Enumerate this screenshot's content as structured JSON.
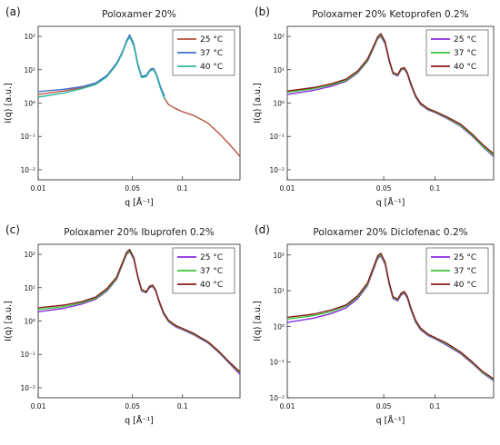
{
  "colors": {
    "25C_a": "#b5533c",
    "37C_a": "#3f6fd1",
    "40C_a": "#2fb5a0",
    "25C": "#8a2be2",
    "37C": "#3cc63c",
    "40C": "#8b1a1a"
  },
  "chart_data": [
    {
      "type": "line",
      "panel_label": "(a)",
      "title": "Poloxamer 20%",
      "xlabel": "q [Å⁻¹]",
      "ylabel": "I(q) [a.u.]",
      "xscale": "log",
      "yscale": "log",
      "xlim": [
        0.01,
        0.25
      ],
      "ylim": [
        0.005,
        200
      ],
      "xticks": [
        {
          "value": 0.01,
          "label": "0.01"
        },
        {
          "value": 0.045,
          "label": "0.05"
        },
        {
          "value": 0.1,
          "label": "0.1"
        }
      ],
      "yticks": [
        {
          "value": 0.01,
          "label": "10⁻²"
        },
        {
          "value": 0.1,
          "label": "10⁻¹"
        },
        {
          "value": 1,
          "label": "10⁰"
        },
        {
          "value": 10,
          "label": "10¹"
        },
        {
          "value": 100,
          "label": "10²"
        }
      ],
      "legend_position": "top-right",
      "series": [
        {
          "name": "25 °C",
          "color_key": "25C_a",
          "x": [
            0.01,
            0.015,
            0.02,
            0.025,
            0.03,
            0.035,
            0.038,
            0.041,
            0.043,
            0.046,
            0.049,
            0.052,
            0.056,
            0.06,
            0.063,
            0.066,
            0.07,
            0.075,
            0.08,
            0.09,
            0.1,
            0.12,
            0.15,
            0.18,
            0.21,
            0.25
          ],
          "y": [
            1.8,
            2.3,
            2.9,
            3.8,
            6.5,
            15,
            30,
            70,
            100,
            55,
            14,
            6,
            6.5,
            10,
            10.5,
            7,
            3,
            1.4,
            0.9,
            0.68,
            0.55,
            0.42,
            0.25,
            0.12,
            0.06,
            0.025
          ]
        },
        {
          "name": "37 °C",
          "color_key": "37C_a",
          "x": [
            0.01,
            0.015,
            0.02,
            0.025,
            0.03,
            0.035,
            0.038,
            0.041,
            0.043,
            0.046,
            0.049,
            0.052,
            0.056,
            0.06,
            0.063,
            0.066,
            0.07,
            0.075
          ],
          "y": [
            2.2,
            2.6,
            3.1,
            4.0,
            6.8,
            16,
            32,
            75,
            110,
            60,
            15,
            6.3,
            6.8,
            10.5,
            11,
            7.5,
            3.3,
            1.6
          ]
        },
        {
          "name": "40 °C",
          "color_key": "40C_a",
          "x": [
            0.01,
            0.015,
            0.02,
            0.025,
            0.03,
            0.035,
            0.038,
            0.041,
            0.043,
            0.046,
            0.049,
            0.052,
            0.056,
            0.06,
            0.063,
            0.066,
            0.07,
            0.075
          ],
          "y": [
            1.5,
            2.0,
            2.7,
            3.6,
            6.2,
            14.5,
            29,
            68,
            95,
            52,
            13.5,
            5.8,
            6.2,
            9.7,
            10,
            6.8,
            2.9,
            1.35
          ]
        }
      ]
    },
    {
      "type": "line",
      "panel_label": "(b)",
      "title": "Poloxamer 20% Ketoprofen 0.2%",
      "xlabel": "q [Å⁻¹]",
      "ylabel": "I(q) [a.u.]",
      "xscale": "log",
      "yscale": "log",
      "xlim": [
        0.01,
        0.25
      ],
      "ylim": [
        0.005,
        200
      ],
      "xticks": [
        {
          "value": 0.01,
          "label": "0.01"
        },
        {
          "value": 0.045,
          "label": "0.05"
        },
        {
          "value": 0.1,
          "label": "0.1"
        }
      ],
      "yticks": [
        {
          "value": 0.01,
          "label": "10⁻²"
        },
        {
          "value": 0.1,
          "label": "10⁻¹"
        },
        {
          "value": 1,
          "label": "10⁰"
        },
        {
          "value": 10,
          "label": "10¹"
        },
        {
          "value": 100,
          "label": "10²"
        }
      ],
      "legend_position": "top-right",
      "series": [
        {
          "name": "25 °C",
          "color_key": "25C",
          "x": [
            0.01,
            0.015,
            0.02,
            0.025,
            0.03,
            0.035,
            0.038,
            0.041,
            0.043,
            0.046,
            0.049,
            0.052,
            0.056,
            0.059,
            0.062,
            0.065,
            0.069,
            0.074,
            0.08,
            0.09,
            0.1,
            0.12,
            0.15,
            0.18,
            0.21,
            0.25
          ],
          "y": [
            1.8,
            2.4,
            3.2,
            4.5,
            8,
            18,
            40,
            85,
            100,
            60,
            18,
            7.5,
            6.5,
            9.8,
            10.5,
            7.5,
            3.3,
            1.5,
            0.9,
            0.62,
            0.52,
            0.35,
            0.2,
            0.1,
            0.05,
            0.025
          ]
        },
        {
          "name": "37 °C",
          "color_key": "37C",
          "x": [
            0.01,
            0.015,
            0.02,
            0.025,
            0.03,
            0.035,
            0.038,
            0.041,
            0.043,
            0.046,
            0.049,
            0.052,
            0.056,
            0.059,
            0.062,
            0.065,
            0.069,
            0.074,
            0.08,
            0.09,
            0.1,
            0.12,
            0.15,
            0.18,
            0.21,
            0.25
          ],
          "y": [
            2.1,
            2.7,
            3.5,
            4.8,
            8.5,
            19,
            42,
            90,
            108,
            65,
            19,
            7.8,
            6.8,
            10.2,
            11,
            7.8,
            3.5,
            1.6,
            0.95,
            0.65,
            0.54,
            0.37,
            0.21,
            0.105,
            0.052,
            0.027
          ]
        },
        {
          "name": "40 °C",
          "color_key": "40C",
          "x": [
            0.01,
            0.015,
            0.02,
            0.025,
            0.03,
            0.035,
            0.038,
            0.041,
            0.043,
            0.046,
            0.049,
            0.052,
            0.056,
            0.059,
            0.062,
            0.065,
            0.069,
            0.074,
            0.08,
            0.09,
            0.1,
            0.12,
            0.15,
            0.18,
            0.21,
            0.25
          ],
          "y": [
            2.3,
            2.9,
            3.8,
            5.2,
            9.2,
            21,
            46,
            98,
            120,
            70,
            20,
            8.2,
            7.1,
            10.8,
            11.6,
            8.2,
            3.7,
            1.7,
            1.0,
            0.68,
            0.56,
            0.39,
            0.23,
            0.115,
            0.058,
            0.03
          ]
        }
      ]
    },
    {
      "type": "line",
      "panel_label": "(c)",
      "title": "Poloxamer 20% Ibuprofen 0.2%",
      "xlabel": "q [Å⁻¹]",
      "ylabel": "I(q) [a.u.]",
      "xscale": "log",
      "yscale": "log",
      "xlim": [
        0.01,
        0.25
      ],
      "ylim": [
        0.005,
        200
      ],
      "xticks": [
        {
          "value": 0.01,
          "label": "0.01"
        },
        {
          "value": 0.045,
          "label": "0.05"
        },
        {
          "value": 0.1,
          "label": "0.1"
        }
      ],
      "yticks": [
        {
          "value": 0.01,
          "label": "10⁻²"
        },
        {
          "value": 0.1,
          "label": "10⁻¹"
        },
        {
          "value": 1,
          "label": "10⁰"
        },
        {
          "value": 10,
          "label": "10¹"
        },
        {
          "value": 100,
          "label": "10²"
        }
      ],
      "legend_position": "top-right",
      "series": [
        {
          "name": "25 °C",
          "color_key": "25C",
          "x": [
            0.01,
            0.015,
            0.02,
            0.025,
            0.03,
            0.035,
            0.038,
            0.041,
            0.043,
            0.046,
            0.049,
            0.052,
            0.056,
            0.059,
            0.062,
            0.065,
            0.069,
            0.074,
            0.08,
            0.09,
            0.1,
            0.12,
            0.15,
            0.18,
            0.21,
            0.25
          ],
          "y": [
            1.9,
            2.4,
            3.2,
            4.5,
            8,
            18,
            45,
            100,
            120,
            70,
            20,
            8,
            7,
            10,
            11,
            8,
            3.5,
            1.6,
            0.95,
            0.66,
            0.55,
            0.38,
            0.22,
            0.11,
            0.055,
            0.025
          ]
        },
        {
          "name": "37 °C",
          "color_key": "37C",
          "x": [
            0.01,
            0.015,
            0.02,
            0.025,
            0.03,
            0.035,
            0.038,
            0.041,
            0.043,
            0.046,
            0.049,
            0.052,
            0.056,
            0.059,
            0.062,
            0.065,
            0.069,
            0.074,
            0.08,
            0.09,
            0.1,
            0.12,
            0.15,
            0.18,
            0.21,
            0.25
          ],
          "y": [
            2.2,
            2.7,
            3.5,
            4.8,
            8.6,
            19,
            48,
            105,
            128,
            74,
            21,
            8.4,
            7.3,
            10.5,
            11.5,
            8.4,
            3.7,
            1.7,
            1.0,
            0.7,
            0.58,
            0.4,
            0.23,
            0.115,
            0.058,
            0.028
          ]
        },
        {
          "name": "40 °C",
          "color_key": "40C",
          "x": [
            0.01,
            0.015,
            0.02,
            0.025,
            0.03,
            0.035,
            0.038,
            0.041,
            0.043,
            0.046,
            0.049,
            0.052,
            0.056,
            0.059,
            0.062,
            0.065,
            0.069,
            0.074,
            0.08,
            0.09,
            0.1,
            0.12,
            0.15,
            0.18,
            0.21,
            0.25
          ],
          "y": [
            2.5,
            3.0,
            3.8,
            5.2,
            9.5,
            21,
            52,
            115,
            140,
            80,
            22,
            8.8,
            7.6,
            11,
            12,
            8.8,
            3.9,
            1.8,
            1.05,
            0.73,
            0.6,
            0.42,
            0.24,
            0.12,
            0.06,
            0.03
          ]
        }
      ]
    },
    {
      "type": "line",
      "panel_label": "(d)",
      "title": "Poloxamer 20% Diclofenac 0.2%",
      "xlabel": "q [Å⁻¹]",
      "ylabel": "I(q) [a.u.]",
      "xscale": "log",
      "yscale": "log",
      "xlim": [
        0.01,
        0.25
      ],
      "ylim": [
        0.01,
        200
      ],
      "xticks": [
        {
          "value": 0.01,
          "label": "0.01"
        },
        {
          "value": 0.045,
          "label": "0.05"
        },
        {
          "value": 0.1,
          "label": "0.1"
        }
      ],
      "yticks": [
        {
          "value": 0.01,
          "label": "10⁻²"
        },
        {
          "value": 0.1,
          "label": "10⁻¹"
        },
        {
          "value": 1,
          "label": "10⁰"
        },
        {
          "value": 10,
          "label": "10¹"
        },
        {
          "value": 100,
          "label": "10²"
        }
      ],
      "legend_position": "top-right",
      "series": [
        {
          "name": "25 °C",
          "color_key": "25C",
          "x": [
            0.01,
            0.015,
            0.02,
            0.025,
            0.03,
            0.035,
            0.038,
            0.041,
            0.043,
            0.046,
            0.049,
            0.052,
            0.056,
            0.059,
            0.062,
            0.065,
            0.069,
            0.074,
            0.08,
            0.09,
            0.1,
            0.12,
            0.15,
            0.18,
            0.21,
            0.25
          ],
          "y": [
            1.3,
            1.7,
            2.3,
            3.3,
            6,
            14,
            35,
            80,
            95,
            55,
            15,
            6,
            5.2,
            7.5,
            8.5,
            6.2,
            2.8,
            1.3,
            0.8,
            0.55,
            0.45,
            0.3,
            0.17,
            0.09,
            0.05,
            0.03
          ]
        },
        {
          "name": "37 °C",
          "color_key": "37C",
          "x": [
            0.01,
            0.015,
            0.02,
            0.025,
            0.03,
            0.035,
            0.038,
            0.041,
            0.043,
            0.046,
            0.049,
            0.052,
            0.056,
            0.059,
            0.062,
            0.065,
            0.069,
            0.074,
            0.08,
            0.09,
            0.1,
            0.12,
            0.15,
            0.18,
            0.21,
            0.25
          ],
          "y": [
            1.6,
            2.0,
            2.6,
            3.7,
            6.6,
            15,
            38,
            86,
            102,
            59,
            16,
            6.4,
            5.5,
            8,
            9,
            6.6,
            3.0,
            1.4,
            0.85,
            0.58,
            0.47,
            0.32,
            0.18,
            0.095,
            0.052,
            0.032
          ]
        },
        {
          "name": "40 °C",
          "color_key": "40C",
          "x": [
            0.01,
            0.015,
            0.02,
            0.025,
            0.03,
            0.035,
            0.038,
            0.041,
            0.043,
            0.046,
            0.049,
            0.052,
            0.056,
            0.059,
            0.062,
            0.065,
            0.069,
            0.074,
            0.08,
            0.09,
            0.1,
            0.12,
            0.15,
            0.18,
            0.21,
            0.25
          ],
          "y": [
            1.8,
            2.2,
            2.9,
            4.0,
            7.2,
            16.5,
            41,
            95,
            112,
            64,
            17,
            6.8,
            5.8,
            8.5,
            9.5,
            7.0,
            3.2,
            1.5,
            0.9,
            0.6,
            0.49,
            0.34,
            0.19,
            0.1,
            0.055,
            0.034
          ]
        }
      ]
    }
  ]
}
